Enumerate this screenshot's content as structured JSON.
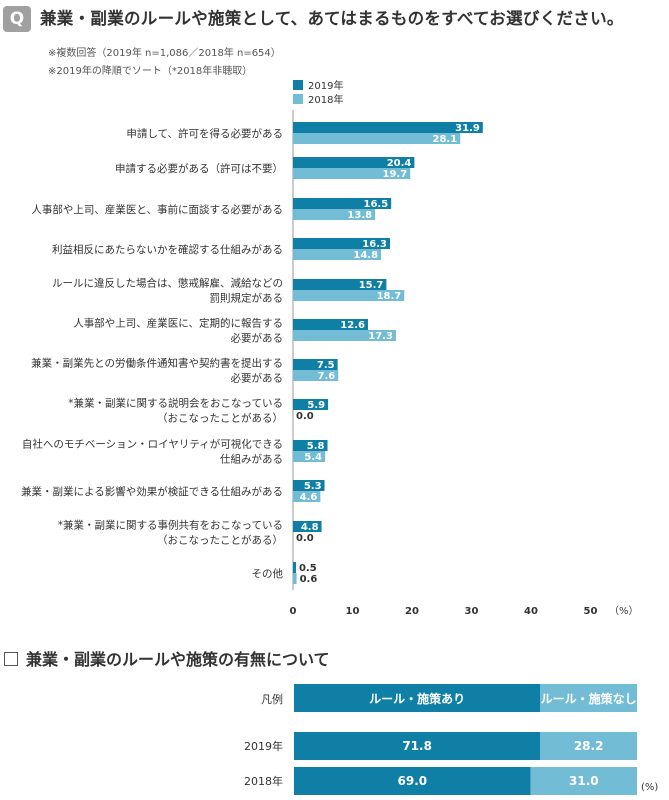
{
  "header": {
    "q_badge": "Q",
    "title": "兼業・副業のルールや施策として、あてはまるものをすべてお選びください。",
    "note1": "※複数回答（2019年 n=1,086／2018年 n=654）",
    "note2": "※2019年の降順でソート（*2018年非聴取）"
  },
  "colors": {
    "y2019": "#0f7fa6",
    "y2018": "#72bcd6",
    "text": "#333333",
    "axis": "#999999"
  },
  "chart_data": [
    {
      "type": "bar",
      "orientation": "horizontal",
      "legend": [
        "2019年",
        "2018年"
      ],
      "legend_position": "top-right",
      "categories": [
        [
          "申請して、許可を得る必要がある"
        ],
        [
          "申請する必要がある（許可は不要）"
        ],
        [
          "人事部や上司、産業医と、事前に面談する必要がある"
        ],
        [
          "利益相反にあたらないかを確認する仕組みがある"
        ],
        [
          "ルールに違反した場合は、懲戒解雇、減給などの",
          "罰則規定がある"
        ],
        [
          "人事部や上司、産業医に、定期的に報告する",
          "必要がある"
        ],
        [
          "兼業・副業先との労働条件通知書や契約書を提出する",
          "必要がある"
        ],
        [
          "*兼業・副業に関する説明会をおこなっている",
          "（おこなったことがある）"
        ],
        [
          "自社へのモチベーション・ロイヤリティが可視化できる",
          "仕組みがある"
        ],
        [
          "兼業・副業による影響や効果が検証できる仕組みがある"
        ],
        [
          "*兼業・副業に関する事例共有をおこなっている",
          "（おこなったことがある）"
        ],
        [
          "その他"
        ]
      ],
      "series": [
        {
          "name": "2019年",
          "values": [
            31.9,
            20.4,
            16.5,
            16.3,
            15.7,
            12.6,
            7.5,
            5.9,
            5.8,
            5.3,
            4.8,
            0.5
          ]
        },
        {
          "name": "2018年",
          "values": [
            28.1,
            19.7,
            13.8,
            14.8,
            18.7,
            17.3,
            7.6,
            0.0,
            5.4,
            4.6,
            0.0,
            0.6
          ]
        }
      ],
      "value_labels": [
        [
          "31.9",
          "20.4",
          "16.5",
          "16.3",
          "15.7",
          "12.6",
          "7.5",
          "5.9",
          "5.8",
          "5.3",
          "4.8",
          "0.5"
        ],
        [
          "28.1",
          "19.7",
          "13.8",
          "14.8",
          "18.7",
          "17.3",
          "7.6",
          "0.0",
          "5.4",
          "4.6",
          "0.0",
          "0.6"
        ]
      ],
      "xlim": [
        0,
        50
      ],
      "xticks": [
        "0",
        "10",
        "20",
        "30",
        "40",
        "50"
      ],
      "xunit": "（%）"
    },
    {
      "type": "bar",
      "orientation": "horizontal-stacked-100",
      "title": "兼業・副業のルールや施策の有無について",
      "legend_label": "凡例",
      "legend": [
        "ルール・施策あり",
        "ルール・施策なし"
      ],
      "categories": [
        "2019年",
        "2018年"
      ],
      "series": [
        {
          "name": "ルール・施策あり",
          "values": [
            71.8,
            69.0
          ]
        },
        {
          "name": "ルール・施策なし",
          "values": [
            28.2,
            31.0
          ]
        }
      ],
      "value_labels": [
        [
          "71.8",
          "69.0"
        ],
        [
          "28.2",
          "31.0"
        ]
      ],
      "unit": "(%)"
    }
  ]
}
